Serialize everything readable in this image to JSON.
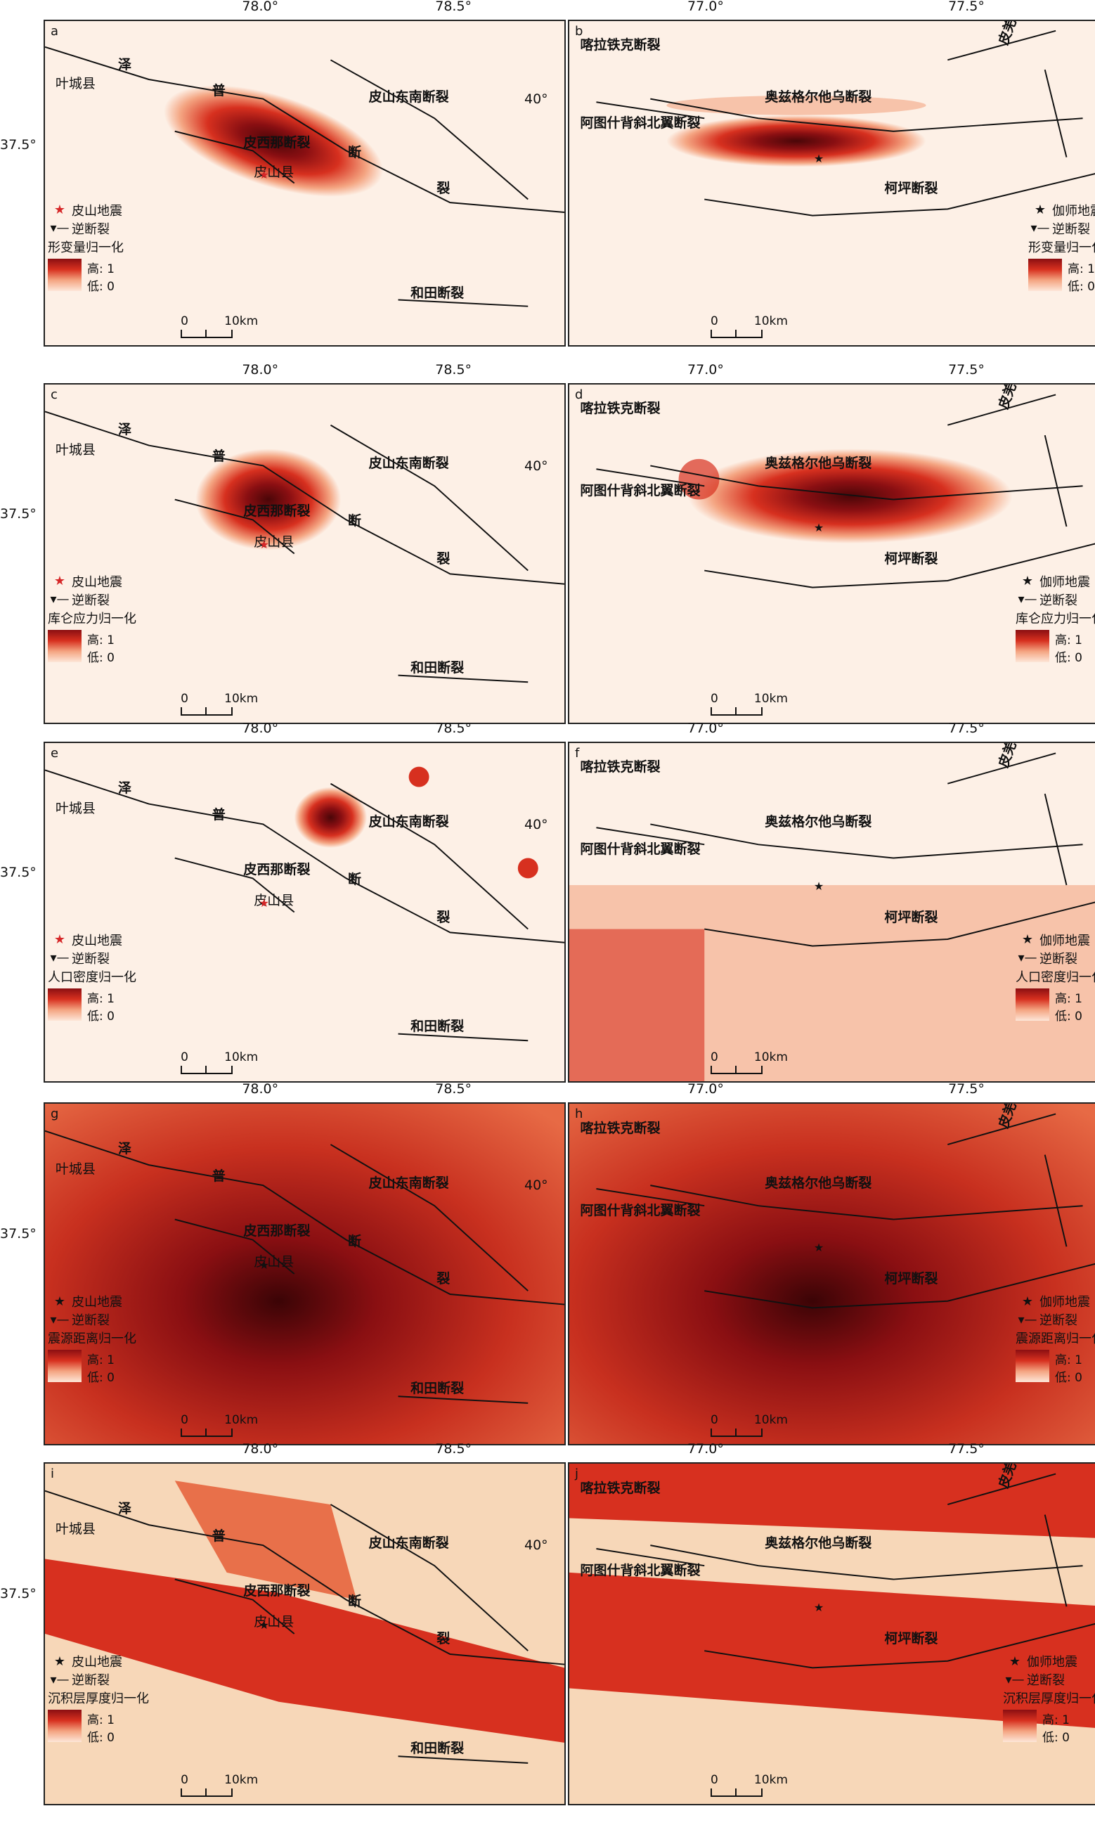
{
  "panels": [
    {
      "id": "a",
      "kind": "pishan",
      "legend_title": "形变量归一化",
      "event": "皮山地震",
      "marker": "red",
      "fill": "deform"
    },
    {
      "id": "b",
      "kind": "jiashi",
      "legend_title": "形变量归一化",
      "event": "伽师地震",
      "marker": "black",
      "fill": "deform"
    },
    {
      "id": "c",
      "kind": "pishan",
      "legend_title": "库仑应力归一化",
      "event": "皮山地震",
      "marker": "red",
      "fill": "stress"
    },
    {
      "id": "d",
      "kind": "jiashi",
      "legend_title": "库仑应力归一化",
      "event": "伽师地震",
      "marker": "black",
      "fill": "stress"
    },
    {
      "id": "e",
      "kind": "pishan",
      "legend_title": "人口密度归一化",
      "event": "皮山地震",
      "marker": "red",
      "fill": "pop"
    },
    {
      "id": "f",
      "kind": "jiashi",
      "legend_title": "人口密度归一化",
      "event": "伽师地震",
      "marker": "black",
      "fill": "pop"
    },
    {
      "id": "g",
      "kind": "pishan",
      "legend_title": "震源距离归一化",
      "event": "皮山地震",
      "marker": "black",
      "fill": "dist"
    },
    {
      "id": "h",
      "kind": "jiashi",
      "legend_title": "震源距离归一化",
      "event": "伽师地震",
      "marker": "black",
      "fill": "dist"
    },
    {
      "id": "i",
      "kind": "pishan",
      "legend_title": "沉积层厚度归一化",
      "event": "皮山地震",
      "marker": "black",
      "fill": "sed"
    },
    {
      "id": "j",
      "kind": "jiashi",
      "legend_title": "沉积层厚度归一化",
      "event": "伽师地震",
      "marker": "black",
      "fill": "sed"
    }
  ],
  "pishan": {
    "lon_ticks": [
      "78.0°",
      "78.5°"
    ],
    "lat_ticks": [
      "37.5°"
    ],
    "faults": [
      "泽",
      "普",
      "皮山东南断裂",
      "断",
      "裂",
      "皮西那断裂",
      "和田断裂"
    ],
    "places": [
      "叶城县",
      "皮山县"
    ]
  },
  "jiashi": {
    "lon_ticks": [
      "77.0°",
      "77.5°"
    ],
    "lat_ticks": [
      "40°"
    ],
    "faults": [
      "喀拉铁克断裂",
      "皮羌（普昌）",
      "奥兹格尔他乌断裂",
      "阿图什背斜北翼断裂",
      "柯坪断裂"
    ]
  },
  "legend": {
    "thrust": "逆断裂",
    "high": "高: 1",
    "low": "低: 0"
  },
  "scale": {
    "zero": "0",
    "ten": "10km"
  },
  "colors": {
    "dark": "#8a0f12",
    "mid": "#d7301f",
    "light": "#f4a582",
    "pale": "#fbe3d3",
    "bg": "#fdf0e6"
  }
}
